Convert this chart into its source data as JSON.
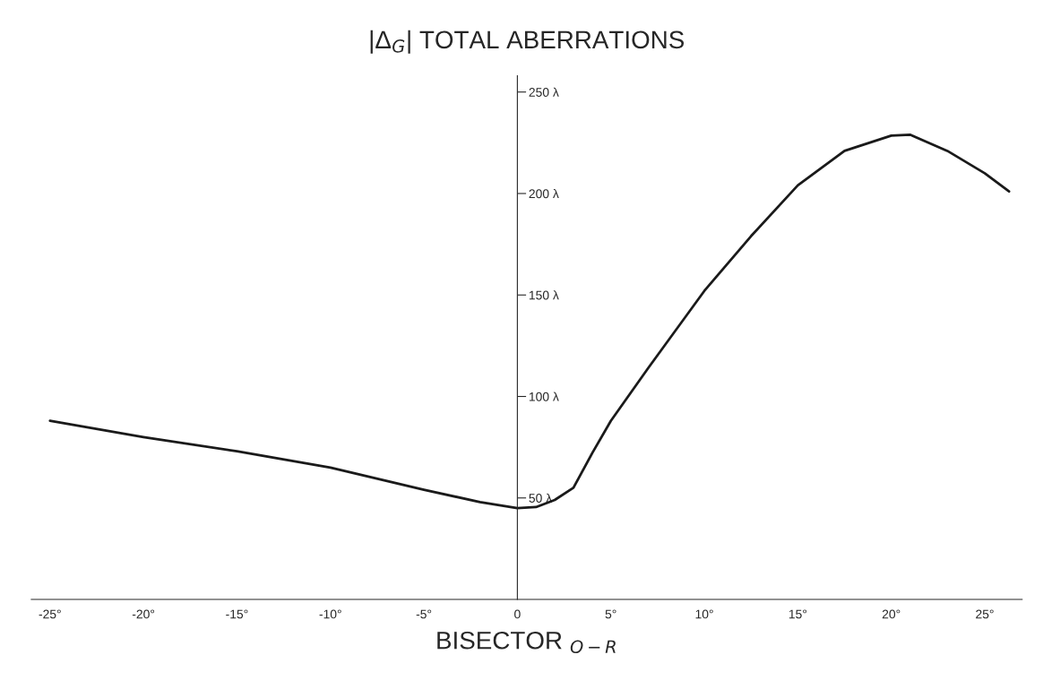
{
  "chart_data": {
    "type": "line",
    "title": "|Δ$_{G}$| TOTAL ABERRATIONS",
    "xlabel": "BISECTOR $_{O−R}$",
    "x": [
      -25,
      -20,
      -15,
      -10,
      -5,
      -2,
      0,
      1,
      2,
      3,
      4,
      5,
      7,
      10,
      12.5,
      15,
      17.5,
      20,
      21,
      23,
      25,
      26.3
    ],
    "series": [
      {
        "color": "#1a1a1a",
        "values": [
          88,
          80,
          73,
          65,
          54,
          48,
          45,
          45.5,
          49,
          55,
          72,
          88,
          114,
          152,
          179,
          204,
          221,
          228.5,
          229,
          221,
          210,
          201
        ]
      }
    ],
    "xlim": [
      -26,
      27
    ],
    "ylim": [
      0,
      258
    ],
    "xticks": [
      {
        "value": -25,
        "label": "-25°"
      },
      {
        "value": -20,
        "label": "-20°"
      },
      {
        "value": -15,
        "label": "-15°"
      },
      {
        "value": -10,
        "label": "-10°"
      },
      {
        "value": -5,
        "label": "-5°"
      },
      0,
      {
        "value": 5,
        "label": "5°"
      },
      {
        "value": 10,
        "label": "10°"
      },
      {
        "value": 15,
        "label": "15°"
      },
      {
        "value": 20,
        "label": "20°"
      },
      {
        "value": 25,
        "label": "25°"
      }
    ],
    "yticks": [
      {
        "value": 50,
        "label": "50 λ"
      },
      {
        "value": 100,
        "label": "100 λ"
      },
      {
        "value": 150,
        "label": "150 λ"
      },
      {
        "value": 200,
        "label": "200 λ"
      },
      {
        "value": 250,
        "label": "250 λ"
      }
    ],
    "grid": false,
    "legend": false,
    "marker": "none",
    "line_style": "solid"
  }
}
